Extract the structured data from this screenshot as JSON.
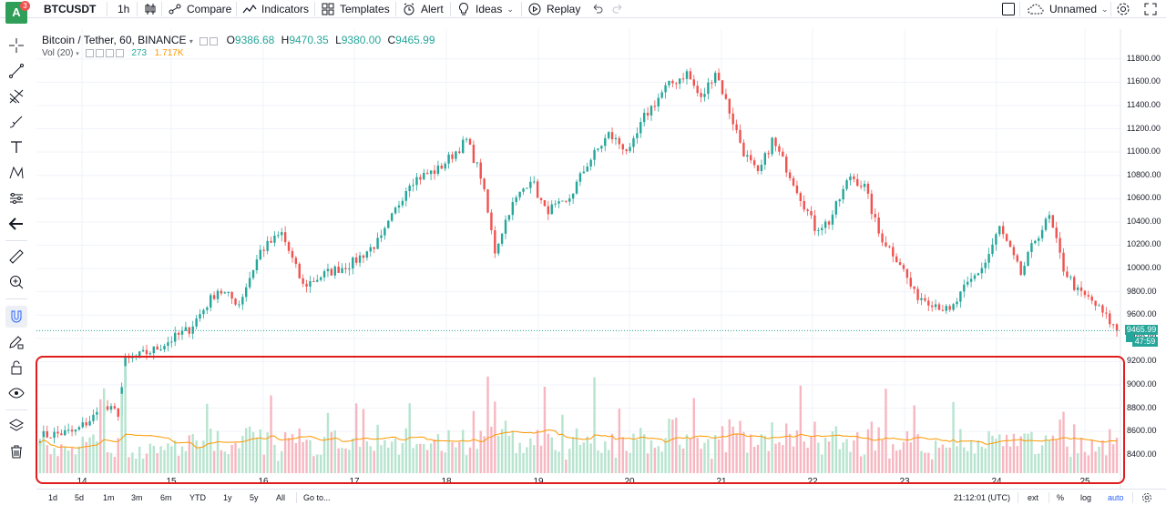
{
  "topbar": {
    "avatar_letter": "A",
    "notification_count": "3",
    "symbol": "BTCUSDT",
    "interval": "1h",
    "compare_label": "Compare",
    "indicators_label": "Indicators",
    "templates_label": "Templates",
    "alert_label": "Alert",
    "ideas_label": "Ideas",
    "replay_label": "Replay",
    "layout_name": "Unnamed",
    "icons": [
      "bar-style-icon",
      "compare-icon",
      "indicators-icon",
      "templates-icon",
      "alert-icon",
      "ideas-icon",
      "replay-icon",
      "undo-icon",
      "redo-icon",
      "layout-icon",
      "cloud-icon",
      "settings-icon",
      "fullscreen-icon"
    ]
  },
  "legend": {
    "title": "Bitcoin / Tether, 60, BINANCE",
    "o_label": "O",
    "o": "9386.68",
    "h_label": "H",
    "h": "9470.35",
    "l_label": "L",
    "l": "9380.00",
    "c_label": "C",
    "c": "9465.99",
    "vol_title": "Vol (20)",
    "vol_value": "273",
    "vol_ma": "1.717K"
  },
  "last_price_tag": "9465.99",
  "countdown_tag": "47:59",
  "bottombar": {
    "ranges": [
      "1d",
      "5d",
      "1m",
      "3m",
      "6m",
      "YTD",
      "1y",
      "5y",
      "All"
    ],
    "goto_label": "Go to...",
    "clock": "21:12:01 (UTC)",
    "ext_label": "ext",
    "percent_label": "%",
    "log_label": "log",
    "auto_label": "auto"
  },
  "colors": {
    "up": "#26a69a",
    "down": "#ef5350",
    "vol_up": "#b7e4cf",
    "vol_down": "#f7b7c0",
    "vol_ma": "#ff9800",
    "highlight": "#e11c1c"
  },
  "chart_data": {
    "type": "candlestick",
    "symbol": "Bitcoin / Tether, 60, BINANCE",
    "price_ticks": [
      8400,
      8600,
      8800,
      9000,
      9200,
      9400,
      9600,
      9800,
      10000,
      10200,
      10400,
      10600,
      10800,
      11000,
      11200,
      11400,
      11600,
      11800
    ],
    "price_tick_labels": [
      "8400.00",
      "8600.00",
      "8800.00",
      "9000.00",
      "9200.00",
      "9400.00",
      "9600.00",
      "9800.00",
      "10000.00",
      "10200.00",
      "10400.00",
      "10600.00",
      "10800.00",
      "11000.00",
      "11200.00",
      "11400.00",
      "11600.00",
      "11800.00"
    ],
    "ylim": [
      8320,
      11900
    ],
    "time_labels": [
      "14",
      "15",
      "16",
      "17",
      "18",
      "19",
      "20",
      "21",
      "22",
      "23",
      "24",
      "25"
    ],
    "price_anchors": [
      [
        0,
        8560
      ],
      [
        10,
        8600
      ],
      [
        18,
        8800
      ],
      [
        22,
        8760
      ],
      [
        24,
        9200
      ],
      [
        32,
        9300
      ],
      [
        42,
        9480
      ],
      [
        50,
        9820
      ],
      [
        56,
        9700
      ],
      [
        62,
        10150
      ],
      [
        68,
        10300
      ],
      [
        74,
        9850
      ],
      [
        80,
        9950
      ],
      [
        88,
        10050
      ],
      [
        96,
        10250
      ],
      [
        104,
        10750
      ],
      [
        112,
        10850
      ],
      [
        120,
        11100
      ],
      [
        124,
        10800
      ],
      [
        128,
        10150
      ],
      [
        132,
        10500
      ],
      [
        138,
        10780
      ],
      [
        142,
        10500
      ],
      [
        148,
        10550
      ],
      [
        154,
        10900
      ],
      [
        160,
        11150
      ],
      [
        166,
        11000
      ],
      [
        170,
        11300
      ],
      [
        176,
        11550
      ],
      [
        182,
        11680
      ],
      [
        186,
        11450
      ],
      [
        190,
        11700
      ],
      [
        194,
        11350
      ],
      [
        198,
        11000
      ],
      [
        202,
        10800
      ],
      [
        206,
        11100
      ],
      [
        212,
        10750
      ],
      [
        218,
        10350
      ],
      [
        222,
        10400
      ],
      [
        228,
        10800
      ],
      [
        232,
        10700
      ],
      [
        236,
        10300
      ],
      [
        242,
        10050
      ],
      [
        246,
        9780
      ],
      [
        252,
        9700
      ],
      [
        256,
        9620
      ],
      [
        260,
        9820
      ],
      [
        266,
        10050
      ],
      [
        270,
        10350
      ],
      [
        276,
        9950
      ],
      [
        280,
        10250
      ],
      [
        284,
        10440
      ],
      [
        288,
        10000
      ],
      [
        292,
        9800
      ],
      [
        296,
        9720
      ],
      [
        300,
        9580
      ],
      [
        303,
        9466
      ]
    ],
    "candle_count": 304,
    "volume_scale_max": 3000,
    "volume_ma_period": 20,
    "last_price": 9465.99
  }
}
